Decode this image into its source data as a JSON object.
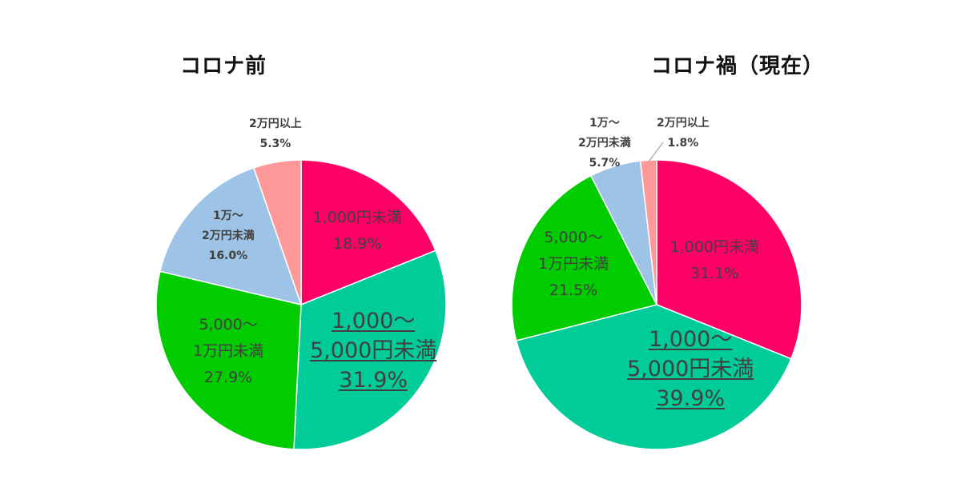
{
  "chart_data": [
    {
      "type": "pie",
      "title": "コロナ前",
      "slices": [
        {
          "label": [
            "1,000円未満"
          ],
          "value": 18.9,
          "pct": "18.9%",
          "color": "#ff0066"
        },
        {
          "label": [
            "1,000～",
            "5,000円未満"
          ],
          "value": 31.9,
          "pct": "31.9%",
          "color": "#00cc99"
        },
        {
          "label": [
            "5,000～",
            "1万円未満"
          ],
          "value": 27.9,
          "pct": "27.9%",
          "color": "#00cc00"
        },
        {
          "label": [
            "1万～",
            "2万円未満"
          ],
          "value": 16.0,
          "pct": "16.0%",
          "color": "#9dc3e6"
        },
        {
          "label": [
            "2万円以上"
          ],
          "value": 5.3,
          "pct": "5.3%",
          "color": "#ff9999"
        }
      ]
    },
    {
      "type": "pie",
      "title": "コロナ禍（現在）",
      "slices": [
        {
          "label": [
            "1,000円未満"
          ],
          "value": 31.1,
          "pct": "31.1%",
          "color": "#ff0066"
        },
        {
          "label": [
            "1,000～",
            "5,000円未満"
          ],
          "value": 39.9,
          "pct": "39.9%",
          "color": "#00cc99"
        },
        {
          "label": [
            "5,000～",
            "1万円未満"
          ],
          "value": 21.5,
          "pct": "21.5%",
          "color": "#00cc00"
        },
        {
          "label": [
            "1万～",
            "2万円未満"
          ],
          "value": 5.7,
          "pct": "5.7%",
          "color": "#9dc3e6"
        },
        {
          "label": [
            "2万円以上"
          ],
          "value": 1.8,
          "pct": "1.8%",
          "color": "#ff9999"
        }
      ]
    }
  ]
}
